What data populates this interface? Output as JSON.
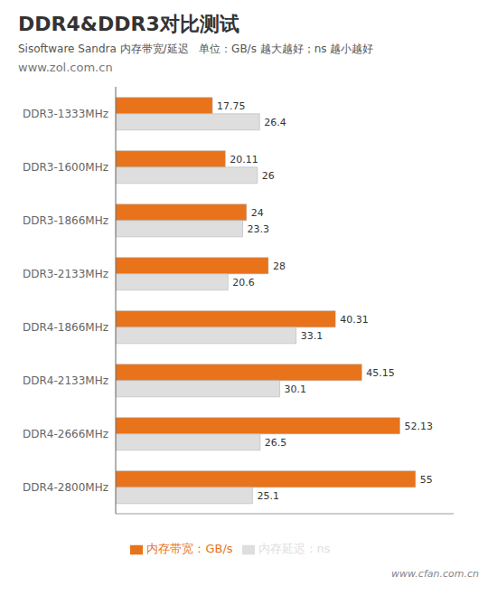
{
  "chart_data": {
    "type": "bar",
    "orientation": "horizontal",
    "title": "DDR4&DDR3对比测试",
    "subtitle": "Sisoftware Sandra 内存带宽/延迟   单位：GB/s 越大越好；ns 越小越好",
    "annotations": [
      "www.zol.com.cn",
      "www.cfan.com.cn"
    ],
    "categories": [
      "DDR3-1333MHz",
      "DDR3-1600MHz",
      "DDR3-1866MHz",
      "DDR3-2133MHz",
      "DDR4-1866MHz",
      "DDR4-2133MHz",
      "DDR4-2666MHz",
      "DDR4-2800MHz"
    ],
    "series": [
      {
        "name": "内存带宽：GB/s",
        "color": "#E8731A",
        "values": [
          17.75,
          20.11,
          24,
          28,
          40.31,
          45.15,
          52.13,
          55
        ]
      },
      {
        "name": "内存延迟：ns",
        "color": "#DEDEDE",
        "values": [
          26.4,
          26,
          23.3,
          20.6,
          33.1,
          30.1,
          26.5,
          25.1
        ]
      }
    ],
    "xlim": [
      0,
      62
    ],
    "data_labels": true,
    "tick_labels": "y",
    "grid": false,
    "legend": "bottom"
  }
}
